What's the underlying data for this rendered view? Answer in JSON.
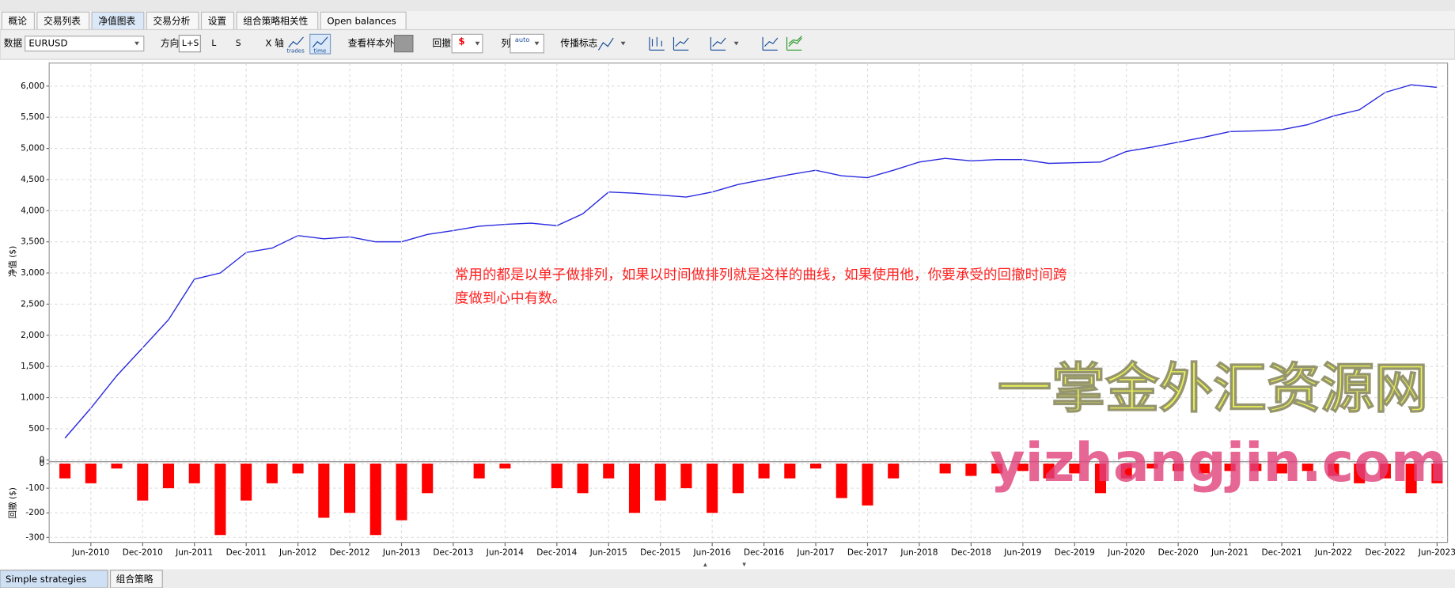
{
  "tabs": [
    "概论",
    "交易列表",
    "净值图表",
    "交易分析",
    "设置",
    "组合策略相关性",
    "Open balances"
  ],
  "toolbar": {
    "data_label": "数据",
    "symbol": "EURUSD",
    "direction_label": "方向",
    "directions": [
      "L+S",
      "L",
      "S"
    ],
    "x_axis_label": "X 轴",
    "x_axis_options": [
      "trades",
      "time"
    ],
    "out_of_sample_label": "查看样本外",
    "drawdown_label": "回撤",
    "drawdown_unit": "$",
    "columns_label": "列",
    "columns_value": "auto",
    "spread_label": "传播标志"
  },
  "chart_data": [
    {
      "type": "line",
      "ylabel": "净值 ($)",
      "color": "#2a2ae0",
      "grid": true,
      "x": [
        "Mar-2010",
        "Jun-2010",
        "Sep-2010",
        "Dec-2010",
        "Mar-2011",
        "Jun-2011",
        "Sep-2011",
        "Dec-2011",
        "Mar-2012",
        "Jun-2012",
        "Sep-2012",
        "Dec-2012",
        "Mar-2013",
        "Jun-2013",
        "Sep-2013",
        "Dec-2013",
        "Mar-2014",
        "Jun-2014",
        "Sep-2014",
        "Dec-2014",
        "Mar-2015",
        "Jun-2015",
        "Sep-2015",
        "Dec-2015",
        "Mar-2016",
        "Jun-2016",
        "Sep-2016",
        "Dec-2016",
        "Mar-2017",
        "Jun-2017",
        "Sep-2017",
        "Dec-2017",
        "Mar-2018",
        "Jun-2018",
        "Sep-2018",
        "Dec-2018",
        "Mar-2019",
        "Jun-2019",
        "Sep-2019",
        "Dec-2019",
        "Mar-2020",
        "Jun-2020",
        "Sep-2020",
        "Dec-2020",
        "Mar-2021",
        "Jun-2021",
        "Sep-2021",
        "Dec-2021",
        "Mar-2022",
        "Jun-2022",
        "Sep-2022",
        "Dec-2022",
        "Mar-2023",
        "Jun-2023"
      ],
      "values": [
        350,
        830,
        1350,
        1800,
        2250,
        2900,
        3000,
        3330,
        3400,
        3600,
        3550,
        3580,
        3500,
        3500,
        3620,
        3680,
        3750,
        3780,
        3800,
        3760,
        3950,
        4300,
        4280,
        4250,
        4220,
        4300,
        4420,
        4500,
        4580,
        4650,
        4560,
        4530,
        4650,
        4780,
        4840,
        4800,
        4820,
        4820,
        4760,
        4770,
        4780,
        4950,
        5020,
        5100,
        5180,
        5270,
        5280,
        5300,
        5380,
        5520,
        5620,
        5900,
        6020,
        5980
      ],
      "ylim": [
        0,
        6370
      ],
      "yticks": [
        0,
        500,
        {
          "value": 1000,
          "label": "1,000"
        },
        {
          "value": 1500,
          "label": "1,500"
        },
        {
          "value": 2000,
          "label": "2,000"
        },
        {
          "value": 2500,
          "label": "2,500"
        },
        {
          "value": 3000,
          "label": "3,000"
        },
        {
          "value": 3500,
          "label": "3,500"
        },
        {
          "value": 4000,
          "label": "4,000"
        },
        {
          "value": 4500,
          "label": "4,500"
        },
        {
          "value": 5000,
          "label": "5,000"
        },
        {
          "value": 5500,
          "label": "5,500"
        },
        {
          "value": 6000,
          "label": "6,000"
        }
      ]
    },
    {
      "type": "bar",
      "ylabel": "回撤 ($)",
      "color": "#ff0000",
      "grid": true,
      "x": [
        "Mar-2010",
        "Jun-2010",
        "Sep-2010",
        "Dec-2010",
        "Mar-2011",
        "Jun-2011",
        "Sep-2011",
        "Dec-2011",
        "Mar-2012",
        "Jun-2012",
        "Sep-2012",
        "Dec-2012",
        "Mar-2013",
        "Jun-2013",
        "Sep-2013",
        "Dec-2013",
        "Mar-2014",
        "Jun-2014",
        "Sep-2014",
        "Dec-2014",
        "Mar-2015",
        "Jun-2015",
        "Sep-2015",
        "Dec-2015",
        "Mar-2016",
        "Jun-2016",
        "Sep-2016",
        "Dec-2016",
        "Mar-2017",
        "Jun-2017",
        "Sep-2017",
        "Dec-2017",
        "Mar-2018",
        "Jun-2018",
        "Sep-2018",
        "Dec-2018",
        "Mar-2019",
        "Jun-2019",
        "Sep-2019",
        "Dec-2019",
        "Mar-2020",
        "Jun-2020",
        "Sep-2020",
        "Dec-2020",
        "Mar-2021",
        "Jun-2021",
        "Sep-2021",
        "Dec-2021",
        "Mar-2022",
        "Jun-2022",
        "Sep-2022",
        "Dec-2022",
        "Mar-2023",
        "Jun-2023"
      ],
      "values": [
        -60,
        -80,
        -20,
        -150,
        -100,
        -80,
        -290,
        -150,
        -80,
        -40,
        -220,
        -200,
        -290,
        -230,
        -120,
        0,
        -60,
        -20,
        0,
        -100,
        -120,
        -60,
        -200,
        -150,
        -100,
        -200,
        -120,
        -60,
        -60,
        -20,
        -140,
        -170,
        -60,
        0,
        -40,
        -50,
        -40,
        -30,
        -60,
        -40,
        -120,
        -60,
        -20,
        -30,
        -40,
        -30,
        -30,
        -40,
        -30,
        -50,
        -80,
        -60,
        -120,
        -80
      ],
      "ylim": [
        -320,
        0
      ],
      "yticks": [
        0,
        -100,
        -200,
        -300
      ],
      "xticks": [
        "Jun-2010",
        "Dec-2010",
        "Jun-2011",
        "Dec-2011",
        "Jun-2012",
        "Dec-2012",
        "Jun-2013",
        "Dec-2013",
        "Jun-2014",
        "Dec-2014",
        "Jun-2015",
        "Dec-2015",
        "Jun-2016",
        "Dec-2016",
        "Jun-2017",
        "Dec-2017",
        "Jun-2018",
        "Dec-2018",
        "Jun-2019",
        "Dec-2019",
        "Jun-2020",
        "Dec-2020",
        "Jun-2021",
        "Dec-2021",
        "Jun-2022",
        "Dec-2022",
        "Jun-2023"
      ]
    }
  ],
  "annotation": [
    "常用的都是以单子做排列，如果以时间做排列就是这样的曲线，如果使用他，你要承受的回撤时间跨",
    "度做到心中有数。"
  ],
  "watermark": {
    "title": "一掌金外汇资源网",
    "url": "yizhangjin.com"
  },
  "bottom_tabs": [
    "Simple strategies",
    "组合策略"
  ]
}
